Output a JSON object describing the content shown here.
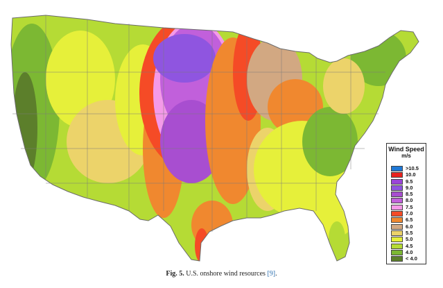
{
  "legend": {
    "title": "Wind Speed",
    "unit": "m/s",
    "items": [
      {
        "label": ">10.5",
        "color": "#1f78d6"
      },
      {
        "label": "10.0",
        "color": "#e8231e"
      },
      {
        "label": "9.5",
        "color": "#9b45d9"
      },
      {
        "label": "9.0",
        "color": "#8f55e0"
      },
      {
        "label": "8.5",
        "color": "#a84ed0"
      },
      {
        "label": "8.0",
        "color": "#c160db"
      },
      {
        "label": "7.5",
        "color": "#f49ae8"
      },
      {
        "label": "7.0",
        "color": "#f54b26"
      },
      {
        "label": "6.5",
        "color": "#f0882f"
      },
      {
        "label": "6.0",
        "color": "#d2a882"
      },
      {
        "label": "5.5",
        "color": "#ecd36a"
      },
      {
        "label": "5.0",
        "color": "#e6f03a"
      },
      {
        "label": "4.5",
        "color": "#b5db35"
      },
      {
        "label": "4.0",
        "color": "#7cb833"
      },
      {
        "label": "< 4.0",
        "color": "#5c7f2b"
      }
    ]
  },
  "caption": {
    "fig_label": "Fig. 5.",
    "text": "U.S. onshore wind resources",
    "ref": "[9]",
    "end": "."
  }
}
